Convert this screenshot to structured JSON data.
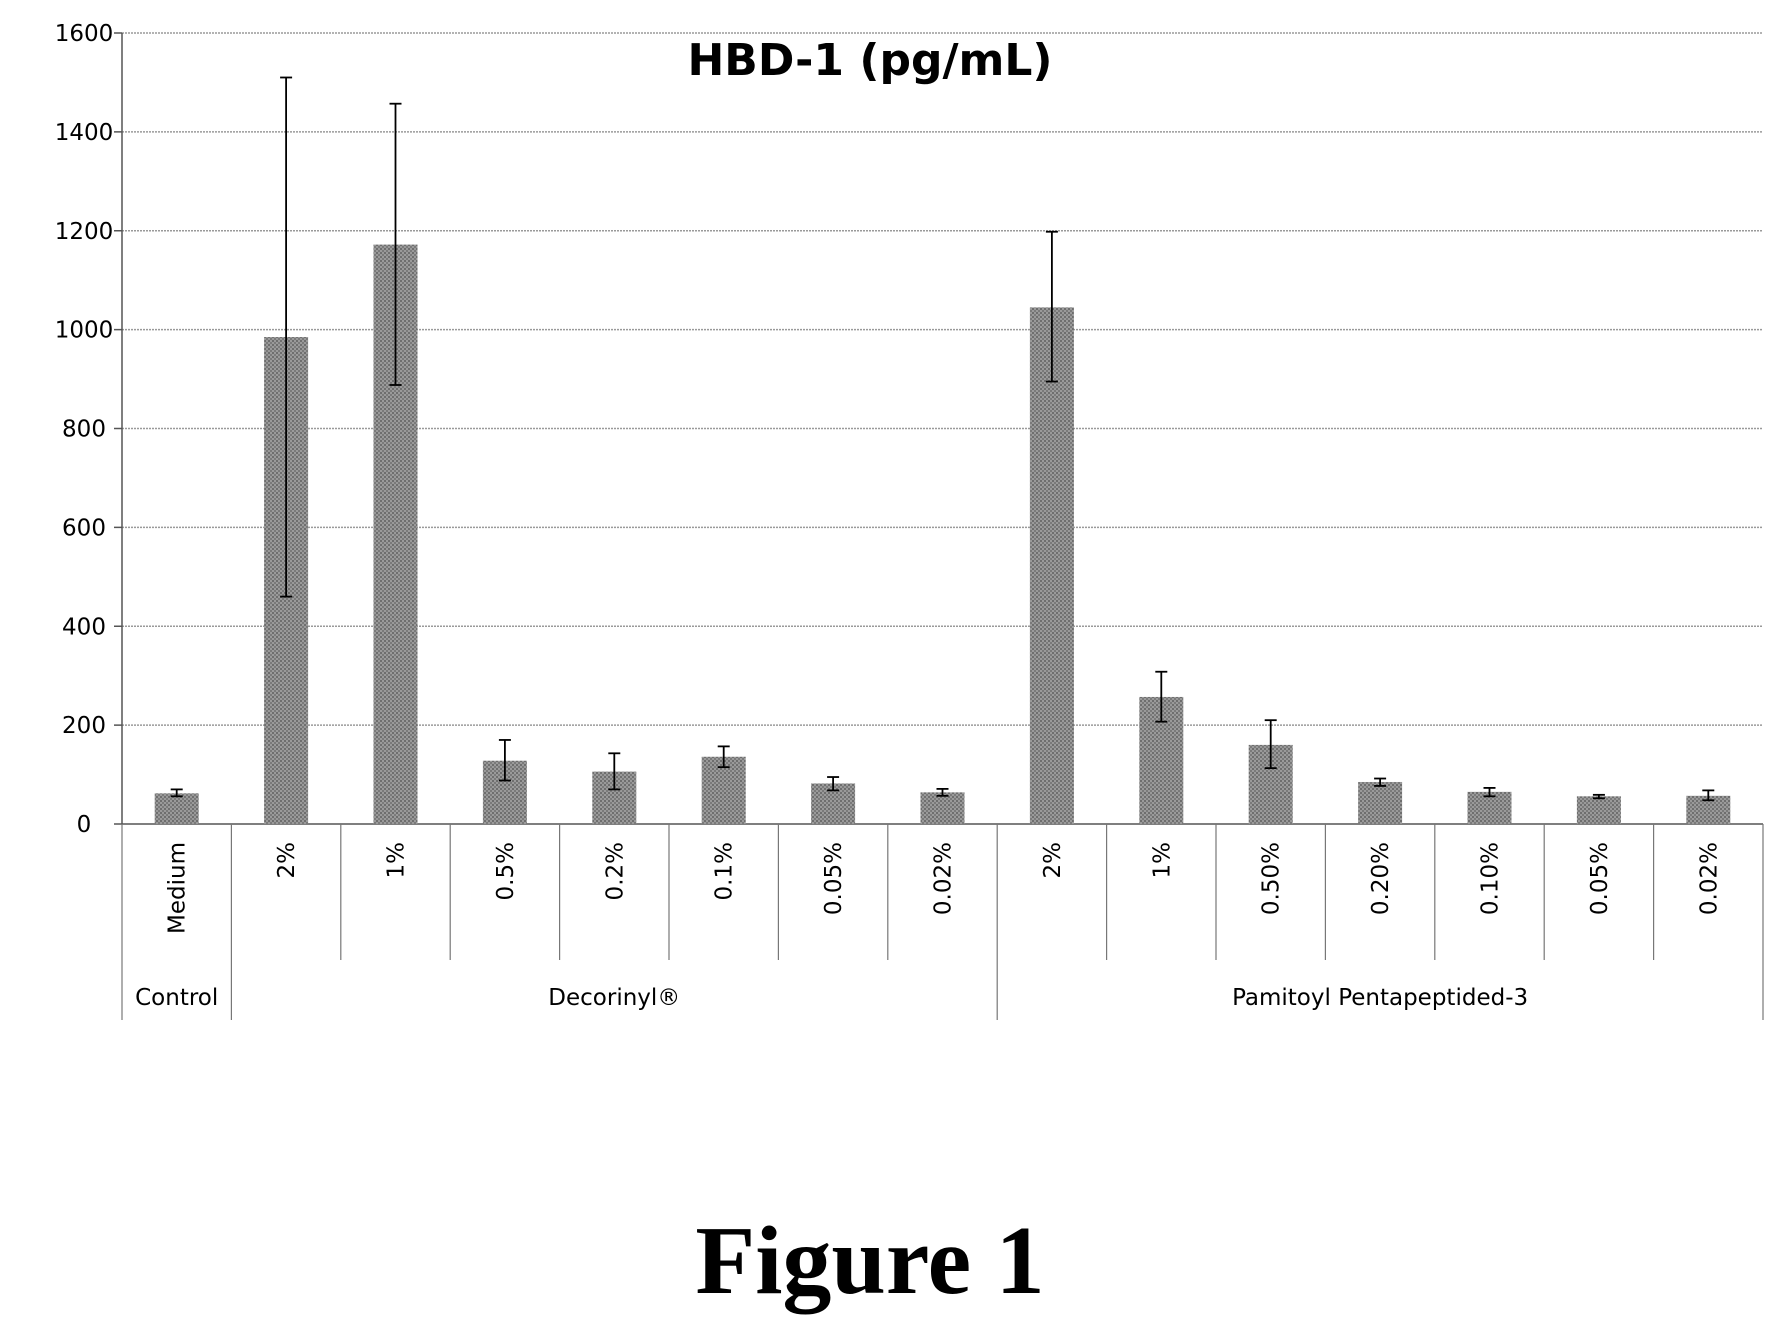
{
  "chart_data": {
    "type": "bar",
    "title": "HBD-1 (pg/mL)",
    "xlabel": "",
    "ylabel": "",
    "ylim": [
      0,
      1600
    ],
    "yticks": [
      "0",
      "200",
      "400",
      "600",
      "800",
      "1000",
      "1200",
      "1400",
      "1600"
    ],
    "grid": true,
    "legend": "none",
    "categories": [
      "Medium",
      "2%",
      "1%",
      "0.5%",
      "0.2%",
      "0.1%",
      "0.05%",
      "0.02%",
      "2%",
      "1%",
      "0.50%",
      "0.20%",
      "0.10%",
      "0.05%",
      "0.02%"
    ],
    "groups": [
      {
        "label": "Control",
        "count": 1
      },
      {
        "label": "Decorinyl®",
        "count": 7
      },
      {
        "label": "Pamitoyl Pentapeptided-3",
        "count": 7
      }
    ],
    "values": [
      62,
      985,
      1172,
      128,
      106,
      136,
      82,
      64,
      1045,
      257,
      160,
      85,
      65,
      56,
      57
    ],
    "error_low": [
      56,
      460,
      888,
      88,
      70,
      115,
      68,
      57,
      895,
      207,
      113,
      77,
      56,
      52,
      48
    ],
    "error_high": [
      70,
      1510,
      1457,
      170,
      143,
      157,
      95,
      71,
      1198,
      308,
      210,
      92,
      73,
      59,
      68
    ],
    "bar_color": "#8a8a8a"
  },
  "caption": "Figure 1"
}
